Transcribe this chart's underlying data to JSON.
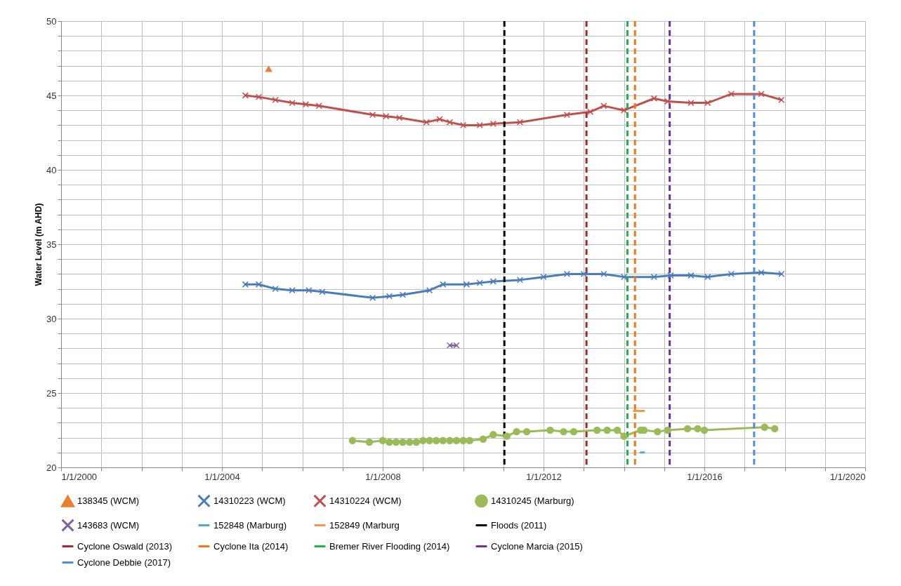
{
  "chart_data": {
    "type": "line",
    "ylabel": "Water Level (m AHD)",
    "xlim": [
      "2000-01-01",
      "2020-01-01"
    ],
    "xticks": [
      {
        "value": "2000-01-01",
        "label": "1/1/2000"
      },
      {
        "value": "2001-01-01",
        "label": null
      },
      {
        "value": "2002-01-01",
        "label": null
      },
      {
        "value": "2003-01-01",
        "label": null
      },
      {
        "value": "2004-01-01",
        "label": "1/1/2004"
      },
      {
        "value": "2005-01-01",
        "label": null
      },
      {
        "value": "2006-01-01",
        "label": null
      },
      {
        "value": "2007-01-01",
        "label": null
      },
      {
        "value": "2008-01-01",
        "label": "1/1/2008"
      },
      {
        "value": "2009-01-01",
        "label": null
      },
      {
        "value": "2010-01-01",
        "label": null
      },
      {
        "value": "2011-01-01",
        "label": null
      },
      {
        "value": "2012-01-01",
        "label": "1/1/2012"
      },
      {
        "value": "2013-01-01",
        "label": null
      },
      {
        "value": "2014-01-01",
        "label": null
      },
      {
        "value": "2015-01-01",
        "label": null
      },
      {
        "value": "2016-01-01",
        "label": "1/1/2016"
      },
      {
        "value": "2017-01-01",
        "label": null
      },
      {
        "value": "2018-01-01",
        "label": null
      },
      {
        "value": "2019-01-01",
        "label": null
      },
      {
        "value": "2020-01-01",
        "label": "1/1/2020"
      }
    ],
    "ylim": [
      20,
      50
    ],
    "yticks": [
      20,
      {
        "value": 21,
        "label": null
      },
      {
        "value": 22,
        "label": null
      },
      {
        "value": 23,
        "label": null
      },
      {
        "value": 24,
        "label": null
      },
      25,
      {
        "value": 26,
        "label": null
      },
      {
        "value": 27,
        "label": null
      },
      {
        "value": 28,
        "label": null
      },
      {
        "value": 29,
        "label": null
      },
      30,
      {
        "value": 31,
        "label": null
      },
      {
        "value": 32,
        "label": null
      },
      {
        "value": 33,
        "label": null
      },
      {
        "value": 34,
        "label": null
      },
      35,
      {
        "value": 36,
        "label": null
      },
      {
        "value": 37,
        "label": null
      },
      {
        "value": 38,
        "label": null
      },
      {
        "value": 39,
        "label": null
      },
      40,
      {
        "value": 41,
        "label": null
      },
      {
        "value": 42,
        "label": null
      },
      {
        "value": 43,
        "label": null
      },
      {
        "value": 44,
        "label": null
      },
      45,
      {
        "value": 46,
        "label": null
      },
      {
        "value": 47,
        "label": null
      },
      {
        "value": 48,
        "label": null
      },
      {
        "value": 49,
        "label": null
      },
      50
    ],
    "grid": true,
    "legend": "bottom",
    "series": [
      {
        "name": "138345 (WCM)",
        "color": "#ed7d31",
        "marker": "triangle",
        "line_style": "solid",
        "x": [
          "2005-03"
        ],
        "values": [
          46.8
        ]
      },
      {
        "name": "14310223 (WCM)",
        "color": "#4a7ebb",
        "marker": "cross",
        "line_style": "solid",
        "x": [
          "2004-08",
          "2004-12",
          "2005-05",
          "2005-10",
          "2006-03",
          "2006-07",
          "2007-10",
          "2008-03",
          "2008-07",
          "2009-03",
          "2009-07",
          "2010-02",
          "2010-06",
          "2010-10",
          "2011-06",
          "2012-01",
          "2012-08",
          "2013-01",
          "2013-07",
          "2014-01",
          "2014-10",
          "2015-03",
          "2015-09",
          "2016-02",
          "2016-09",
          "2017-06",
          "2017-12"
        ],
        "values": [
          32.3,
          32.3,
          32.0,
          31.9,
          31.9,
          31.8,
          31.4,
          31.5,
          31.6,
          31.9,
          32.3,
          32.3,
          32.4,
          32.5,
          32.6,
          32.8,
          33.0,
          33.0,
          33.0,
          32.8,
          32.8,
          32.9,
          32.9,
          32.8,
          33.0,
          33.1,
          33.0
        ]
      },
      {
        "name": "14310224 (WCM)",
        "color": "#c0504d",
        "marker": "cross",
        "line_style": "solid",
        "x": [
          "2004-08",
          "2004-12",
          "2005-05",
          "2005-10",
          "2006-02",
          "2006-06",
          "2007-10",
          "2008-02",
          "2008-06",
          "2009-02",
          "2009-06",
          "2009-09",
          "2010-01",
          "2010-06",
          "2010-10",
          "2011-06",
          "2012-08",
          "2013-03",
          "2013-07",
          "2014-01",
          "2014-10",
          "2015-02",
          "2015-09",
          "2016-02",
          "2016-09",
          "2017-06",
          "2017-12"
        ],
        "values": [
          45.0,
          44.9,
          44.7,
          44.5,
          44.4,
          44.3,
          43.7,
          43.6,
          43.5,
          43.2,
          43.4,
          43.2,
          43.0,
          43.0,
          43.1,
          43.2,
          43.7,
          43.9,
          44.3,
          44.0,
          44.8,
          44.6,
          44.5,
          44.5,
          45.1,
          45.1,
          44.7
        ]
      },
      {
        "name": "14310245 (Marburg)",
        "color": "#9bbb59",
        "marker": "circle",
        "line_style": "solid",
        "x": [
          "2007-04",
          "2007-09",
          "2008-01",
          "2008-03",
          "2008-05",
          "2008-07",
          "2008-09",
          "2008-11",
          "2009-01",
          "2009-03",
          "2009-05",
          "2009-07",
          "2009-09",
          "2009-11",
          "2010-01",
          "2010-03",
          "2010-07",
          "2010-10",
          "2011-02",
          "2011-05",
          "2011-08",
          "2012-03",
          "2012-07",
          "2012-10",
          "2013-05",
          "2013-08",
          "2013-11",
          "2014-01",
          "2014-06",
          "2014-07",
          "2014-11",
          "2015-02",
          "2015-08",
          "2015-11",
          "2016-01",
          "2017-07",
          "2017-10"
        ],
        "values": [
          21.8,
          21.7,
          21.8,
          21.7,
          21.7,
          21.7,
          21.7,
          21.7,
          21.8,
          21.8,
          21.8,
          21.8,
          21.8,
          21.8,
          21.8,
          21.8,
          21.9,
          22.2,
          22.1,
          22.4,
          22.4,
          22.5,
          22.4,
          22.4,
          22.5,
          22.5,
          22.5,
          22.1,
          22.5,
          22.5,
          22.4,
          22.5,
          22.6,
          22.6,
          22.5,
          22.7,
          22.6
        ]
      },
      {
        "name": "143683 (WCM)",
        "color": "#8064a2",
        "marker": "cross",
        "line_style": "solid",
        "x": [
          "2009-09",
          "2009-11"
        ],
        "values": [
          28.2,
          28.2
        ]
      },
      {
        "name": "152848 (Marburg)",
        "color": "#4bacc6",
        "marker": "none",
        "line_style": "solid",
        "x": [
          "2014-06",
          "2014-07"
        ],
        "values": [
          21.0,
          21.0
        ]
      },
      {
        "name": "152849 (Marburg",
        "color": "#f79646",
        "marker": "none",
        "line_style": "solid",
        "x": [
          "2014-04",
          "2014-07"
        ],
        "values": [
          23.8,
          23.8
        ]
      }
    ],
    "ref_lines": [
      {
        "axis": "x",
        "value": "2011-01-10",
        "label": "Floods (2011)",
        "color": "#000000",
        "line_style": "dashed"
      },
      {
        "axis": "x",
        "value": "2013-01-25",
        "label": "Cyclone Oswald (2013)",
        "color": "#a52a2a",
        "line_style": "dashed"
      },
      {
        "axis": "x",
        "value": "2014-04-11",
        "label": "Cyclone Ita (2014)",
        "color": "#f07820",
        "line_style": "dashed"
      },
      {
        "axis": "x",
        "value": "2014-02-01",
        "label": "Bremer River Flooding (2014)",
        "color": "#22b14c",
        "line_style": "dashed"
      },
      {
        "axis": "x",
        "value": "2015-02-20",
        "label": "Cyclone Marcia (2015)",
        "color": "#7030a0",
        "line_style": "dashed"
      },
      {
        "axis": "x",
        "value": "2017-03-28",
        "label": "Cyclone Debbie (2017)",
        "color": "#4a90d9",
        "line_style": "dashed"
      }
    ]
  }
}
